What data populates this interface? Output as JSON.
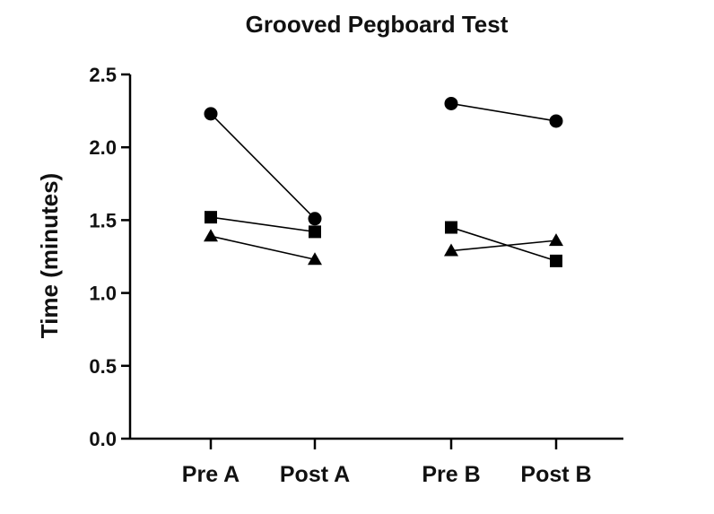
{
  "chart_data": {
    "type": "line",
    "title": "Grooved Pegboard Test",
    "ylabel": "Time (minutes)",
    "xlabel": "",
    "ylim": [
      0,
      2.5
    ],
    "yticks": [
      "0.0",
      "0.5",
      "1.0",
      "1.5",
      "2.0",
      "2.5"
    ],
    "categories": [
      "Pre A",
      "Post A",
      "Pre B",
      "Post B"
    ],
    "groups": [
      [
        "Pre A",
        "Post A"
      ],
      [
        "Pre B",
        "Post B"
      ]
    ],
    "grid": false,
    "legend": "none",
    "series": [
      {
        "marker": "circle",
        "values": [
          2.23,
          1.51,
          2.3,
          2.18
        ]
      },
      {
        "marker": "square",
        "values": [
          1.52,
          1.42,
          1.45,
          1.22
        ]
      },
      {
        "marker": "triangle",
        "values": [
          1.39,
          1.23,
          1.29,
          1.36
        ]
      }
    ]
  }
}
